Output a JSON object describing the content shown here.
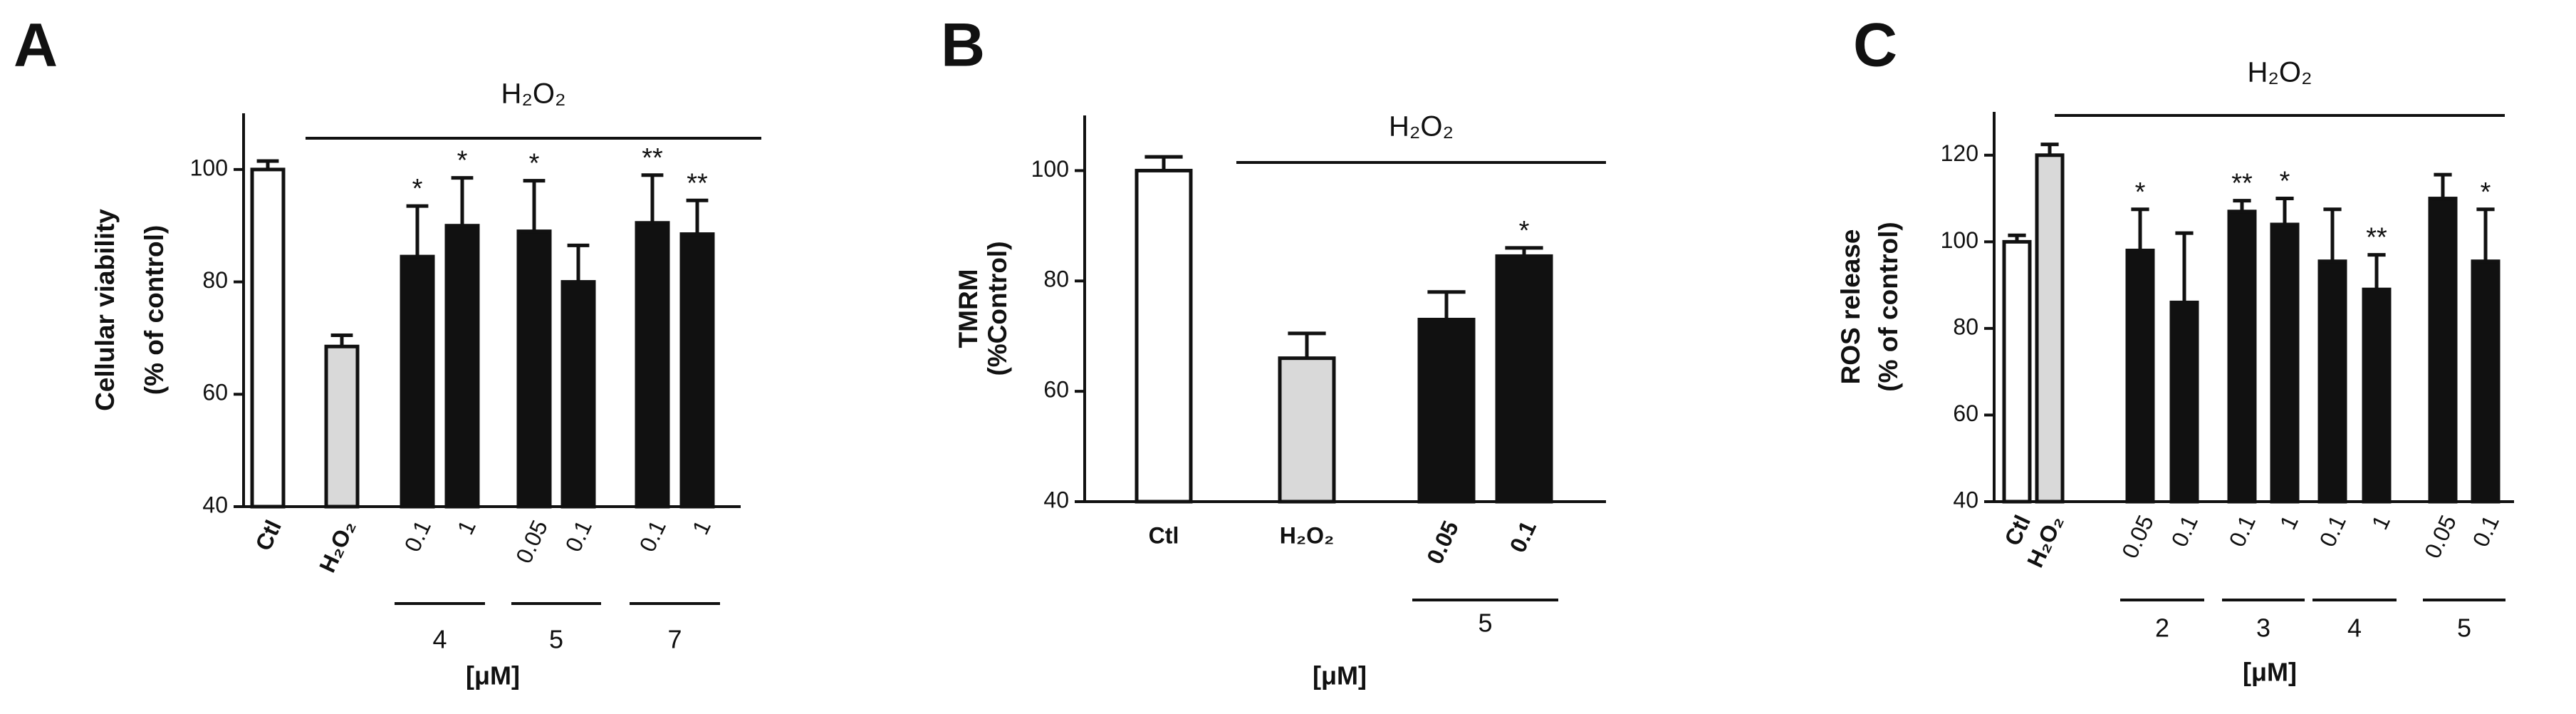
{
  "chart_data": [
    {
      "type": "bar",
      "panel": "A",
      "ylabel": [
        "Cellular viability",
        "(% of control)"
      ],
      "categories": [
        "Ctl",
        "H₂O₂",
        "0.1",
        "1",
        "0.05",
        "0.1",
        "0.1",
        "1"
      ],
      "values": [
        100,
        68.5,
        84.5,
        90,
        89,
        80,
        90.5,
        88.5
      ],
      "errors": [
        1.5,
        2,
        9,
        8.5,
        9,
        6.5,
        8.5,
        6
      ],
      "colors": [
        "#ffffff",
        "#d9d9d9",
        "#111111",
        "#111111",
        "#111111",
        "#111111",
        "#111111",
        "#111111"
      ],
      "annotations": [
        null,
        null,
        "*",
        "*",
        "*",
        null,
        "**",
        "**"
      ],
      "treatment": {
        "label": "H₂O₂",
        "start": 1
      },
      "groups": [
        {
          "label": "4",
          "start": 2,
          "end": 3
        },
        {
          "label": "5",
          "start": 4,
          "end": 5
        },
        {
          "label": "7",
          "start": 6,
          "end": 7
        }
      ],
      "unit": "[μM]",
      "ylim": [
        40,
        110
      ],
      "yticks": [
        40,
        60,
        80,
        100
      ]
    },
    {
      "type": "bar",
      "panel": "B",
      "ylabel": [
        "TMRM",
        "(%Control)"
      ],
      "categories": [
        "Ctl",
        "H₂O₂",
        "0.05",
        "0.1"
      ],
      "values": [
        100,
        66,
        73,
        84.5
      ],
      "errors": [
        2.5,
        4.5,
        5,
        1.5
      ],
      "colors": [
        "#ffffff",
        "#d9d9d9",
        "#111111",
        "#111111"
      ],
      "annotations": [
        null,
        null,
        null,
        "*"
      ],
      "treatment": {
        "label": "H₂O₂",
        "start": 1
      },
      "groups": [
        {
          "label": "5",
          "start": 2,
          "end": 3
        }
      ],
      "unit": "[μM]",
      "ylim": [
        40,
        110
      ],
      "yticks": [
        40,
        60,
        80,
        100
      ]
    },
    {
      "type": "bar",
      "panel": "C",
      "ylabel": [
        "ROS release",
        "(% of control)"
      ],
      "categories": [
        "Ctl",
        "H₂O₂",
        "0.05",
        "0.1",
        "0.1",
        "1",
        "0.1",
        "1",
        "0.05",
        "0.1"
      ],
      "values": [
        100,
        120,
        98,
        86,
        107,
        104,
        95.5,
        89,
        110,
        95.5
      ],
      "errors": [
        1.5,
        2.5,
        9.5,
        16,
        2.5,
        6,
        12,
        8,
        5.5,
        12
      ],
      "colors": [
        "#ffffff",
        "#d9d9d9",
        "#111111",
        "#111111",
        "#111111",
        "#111111",
        "#111111",
        "#111111",
        "#111111",
        "#111111"
      ],
      "annotations": [
        null,
        null,
        "*",
        null,
        "**",
        "*",
        null,
        "**",
        null,
        "*"
      ],
      "treatment": {
        "label": "H₂O₂",
        "start": 1
      },
      "groups": [
        {
          "label": "2",
          "start": 2,
          "end": 3
        },
        {
          "label": "3",
          "start": 4,
          "end": 5
        },
        {
          "label": "4",
          "start": 6,
          "end": 7
        },
        {
          "label": "5",
          "start": 8,
          "end": 9
        }
      ],
      "unit": "[μM]",
      "ylim": [
        40,
        130
      ],
      "yticks": [
        40,
        60,
        80,
        100,
        120
      ]
    }
  ]
}
